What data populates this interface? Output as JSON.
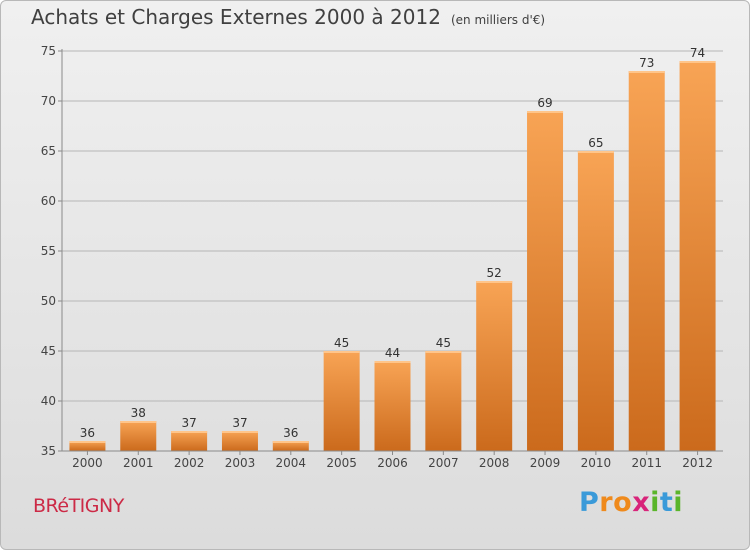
{
  "header": {
    "title": "Achats et Charges Externes 2000 à 2012",
    "subtitle": "(en milliers d'€)"
  },
  "footer": {
    "place": "BRéTIGNY",
    "logo_letters": [
      "P",
      "r",
      "o",
      "x",
      "i",
      "t",
      "i"
    ],
    "logo_colors": [
      "#3a9ad9",
      "#ef8a1c",
      "#ef8a1c",
      "#d8247a",
      "#5ab52a",
      "#3a9ad9",
      "#5ab52a"
    ]
  },
  "colors": {
    "bar_light": "#f8a455",
    "bar_dark": "#cb6a1c",
    "axis": "#8a8a8a",
    "grid": "#b6b6b6"
  },
  "chart_data": {
    "type": "bar",
    "title": "Achats et Charges Externes 2000 à 2012",
    "subtitle": "(en milliers d'€)",
    "categories": [
      "2000",
      "2001",
      "2002",
      "2003",
      "2004",
      "2005",
      "2006",
      "2007",
      "2008",
      "2009",
      "2010",
      "2011",
      "2012"
    ],
    "values": [
      36,
      38,
      37,
      37,
      36,
      45,
      44,
      45,
      52,
      69,
      65,
      73,
      74
    ],
    "ylim": [
      35,
      75
    ],
    "yticks": [
      35,
      40,
      45,
      50,
      55,
      60,
      65,
      70,
      75
    ],
    "grid": true,
    "data_labels": true
  }
}
